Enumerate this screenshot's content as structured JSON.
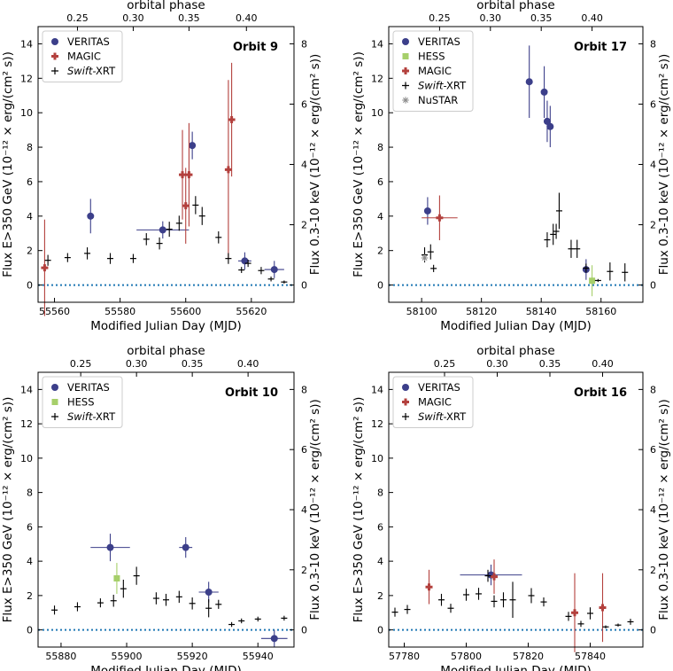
{
  "figure": {
    "x_label": "Modified Julian Day (MJD)",
    "top_label": "orbital phase",
    "y_label_left": "Flux E>350 GeV (10⁻¹² × erg/(cm² s))",
    "y_label_right": "Flux 0.3-10 keV (10⁻¹² × erg/(cm² s))",
    "series_colors": {
      "VERITAS": "#3c3f8a",
      "MAGIC": "#b3403d",
      "HESS": "#a6cf6a",
      "Swift-XRT": "#000000",
      "NuSTAR": "#8c8c8c"
    }
  },
  "chart_data": [
    {
      "type": "scatter",
      "title": "Orbit 9",
      "legend": [
        "VERITAS",
        "MAGIC",
        "Swift-XRT"
      ],
      "xlim": [
        55555,
        55633
      ],
      "ylim": [
        -1,
        15
      ],
      "y2lim": [
        -0.5714,
        8.5714
      ],
      "x_ticks": [
        55560,
        55580,
        55600,
        55620
      ],
      "y_ticks": [
        0,
        2,
        4,
        6,
        8,
        10,
        12,
        14
      ],
      "y2_ticks": [
        0,
        2,
        4,
        6,
        8
      ],
      "phase_ticks": [
        {
          "label": "0.25",
          "mjd": 55567
        },
        {
          "label": "0.30",
          "mjd": 55584
        },
        {
          "label": "0.35",
          "mjd": 55601
        },
        {
          "label": "0.40",
          "mjd": 55618.5
        }
      ],
      "series": [
        {
          "name": "VERITAS",
          "points": [
            {
              "x": 55571,
              "y": 4.0,
              "xerr": 1,
              "yerr": 1.0
            },
            {
              "x": 55593,
              "y": 3.2,
              "xerr": 8,
              "yerr": 0.5
            },
            {
              "x": 55602,
              "y": 8.1,
              "xerr": 1,
              "yerr": 0.8
            },
            {
              "x": 55618,
              "y": 1.4,
              "xerr": 2,
              "yerr": 0.5
            },
            {
              "x": 55627,
              "y": 0.9,
              "xerr": 3,
              "yerr": 0.5
            }
          ]
        },
        {
          "name": "MAGIC",
          "points": [
            {
              "x": 55557,
              "y": 1.0,
              "xerr": 0.5,
              "yerr": 2.8
            },
            {
              "x": 55599,
              "y": 6.4,
              "xerr": 1,
              "yerr": 2.6
            },
            {
              "x": 55600,
              "y": 4.6,
              "xerr": 1,
              "yerr": 2.2
            },
            {
              "x": 55601,
              "y": 6.4,
              "xerr": 1,
              "yerr": 3.0
            },
            {
              "x": 55613,
              "y": 6.7,
              "xerr": 0.5,
              "yerr": 5.2
            },
            {
              "x": 55614,
              "y": 9.6,
              "xerr": 0.5,
              "yerr": 3.3
            }
          ]
        },
        {
          "name": "Swift-XRT",
          "points": [
            {
              "x": 55558,
              "y": 0.82,
              "yerr": 0.18
            },
            {
              "x": 55564,
              "y": 0.91,
              "yerr": 0.15
            },
            {
              "x": 55570,
              "y": 1.05,
              "yerr": 0.2
            },
            {
              "x": 55577,
              "y": 0.88,
              "yerr": 0.18
            },
            {
              "x": 55584,
              "y": 0.88,
              "yerr": 0.15
            },
            {
              "x": 55588,
              "y": 1.52,
              "yerr": 0.2
            },
            {
              "x": 55592,
              "y": 1.38,
              "yerr": 0.2
            },
            {
              "x": 55595,
              "y": 1.85,
              "yerr": 0.25
            },
            {
              "x": 55598,
              "y": 2.05,
              "yerr": 0.25
            },
            {
              "x": 55603,
              "y": 2.65,
              "yerr": 0.3
            },
            {
              "x": 55605,
              "y": 2.29,
              "yerr": 0.3
            },
            {
              "x": 55610,
              "y": 1.58,
              "yerr": 0.2
            },
            {
              "x": 55613,
              "y": 0.88,
              "yerr": 0.18
            },
            {
              "x": 55617,
              "y": 0.5,
              "yerr": 0.1
            },
            {
              "x": 55619,
              "y": 0.72,
              "yerr": 0.12
            },
            {
              "x": 55623,
              "y": 0.48,
              "yerr": 0.12
            },
            {
              "x": 55626,
              "y": 0.2,
              "yerr": 0.08
            },
            {
              "x": 55630,
              "y": 0.1,
              "yerr": 0.05
            }
          ]
        }
      ]
    },
    {
      "type": "scatter",
      "title": "Orbit 17",
      "legend": [
        "VERITAS",
        "HESS",
        "MAGIC",
        "Swift-XRT",
        "NuSTAR"
      ],
      "xlim": [
        58089,
        58174
      ],
      "ylim": [
        -1,
        15
      ],
      "y2lim": [
        -0.5714,
        8.5714
      ],
      "x_ticks": [
        58100,
        58120,
        58140,
        58160
      ],
      "y_ticks": [
        0,
        2,
        4,
        6,
        8,
        10,
        12,
        14
      ],
      "y2_ticks": [
        0,
        2,
        4,
        6,
        8
      ],
      "phase_ticks": [
        {
          "label": "0.25",
          "mjd": 58106
        },
        {
          "label": "0.30",
          "mjd": 58123
        },
        {
          "label": "0.35",
          "mjd": 58140
        },
        {
          "label": "0.40",
          "mjd": 58157
        }
      ],
      "series": [
        {
          "name": "VERITAS",
          "points": [
            {
              "x": 58102,
              "y": 4.3,
              "xerr": 1,
              "yerr": 0.8
            },
            {
              "x": 58136,
              "y": 11.8,
              "xerr": 1,
              "yerr": 2.1
            },
            {
              "x": 58141,
              "y": 11.2,
              "xerr": 1,
              "yerr": 1.5
            },
            {
              "x": 58142,
              "y": 9.5,
              "xerr": 1,
              "yerr": 1.2
            },
            {
              "x": 58143,
              "y": 9.2,
              "xerr": 1,
              "yerr": 1.2
            },
            {
              "x": 58155,
              "y": 0.9,
              "xerr": 1,
              "yerr": 0.6
            }
          ]
        },
        {
          "name": "HESS",
          "points": [
            {
              "x": 58157,
              "y": 0.25,
              "xerr": 0.5,
              "yerr": 0.9
            }
          ]
        },
        {
          "name": "MAGIC",
          "points": [
            {
              "x": 58106,
              "y": 3.9,
              "xerr": 6,
              "yerr": 1.3
            }
          ]
        },
        {
          "name": "Swift-XRT",
          "points": [
            {
              "x": 58101,
              "y": 1.0,
              "yerr": 0.25
            },
            {
              "x": 58103,
              "y": 1.1,
              "yerr": 0.25
            },
            {
              "x": 58104,
              "y": 0.55,
              "yerr": 0.12
            },
            {
              "x": 58142,
              "y": 1.5,
              "yerr": 0.25
            },
            {
              "x": 58144,
              "y": 1.68,
              "yerr": 0.35
            },
            {
              "x": 58145,
              "y": 1.78,
              "yerr": 0.25
            },
            {
              "x": 58146,
              "y": 2.46,
              "yerr": 0.6
            },
            {
              "x": 58150,
              "y": 1.2,
              "yerr": 0.3
            },
            {
              "x": 58152,
              "y": 1.2,
              "yerr": 0.3
            },
            {
              "x": 58155,
              "y": 0.56,
              "yerr": 0.15
            },
            {
              "x": 58159,
              "y": 0.15,
              "yerr": 0.05
            },
            {
              "x": 58163,
              "y": 0.45,
              "yerr": 0.3
            },
            {
              "x": 58168,
              "y": 0.42,
              "yerr": 0.3
            }
          ]
        },
        {
          "name": "NuSTAR",
          "points": [
            {
              "x": 58101,
              "y": 0.9,
              "yerr": 0.1
            }
          ]
        }
      ]
    },
    {
      "type": "scatter",
      "title": "Orbit 10",
      "legend": [
        "VERITAS",
        "HESS",
        "Swift-XRT"
      ],
      "xlim": [
        55873,
        55951
      ],
      "ylim": [
        -1,
        15
      ],
      "y2lim": [
        -0.5714,
        8.5714
      ],
      "x_ticks": [
        55880,
        55900,
        55920,
        55940
      ],
      "y_ticks": [
        0,
        2,
        4,
        6,
        8,
        10,
        12,
        14
      ],
      "y2_ticks": [
        0,
        2,
        4,
        6,
        8
      ],
      "phase_ticks": [
        {
          "label": "0.25",
          "mjd": 55886
        },
        {
          "label": "0.30",
          "mjd": 55903
        },
        {
          "label": "0.35",
          "mjd": 55920
        },
        {
          "label": "0.40",
          "mjd": 55937
        }
      ],
      "series": [
        {
          "name": "VERITAS",
          "points": [
            {
              "x": 55895,
              "y": 4.8,
              "xerr": 6,
              "yerr": 0.8
            },
            {
              "x": 55918,
              "y": 4.8,
              "xerr": 2,
              "yerr": 0.6
            },
            {
              "x": 55925,
              "y": 2.2,
              "xerr": 3,
              "yerr": 0.6
            },
            {
              "x": 55945,
              "y": -0.5,
              "xerr": 4,
              "yerr": 0.5
            }
          ]
        },
        {
          "name": "HESS",
          "points": [
            {
              "x": 55897,
              "y": 3.0,
              "xerr": 0.5,
              "yerr": 0.9
            }
          ]
        },
        {
          "name": "Swift-XRT",
          "points": [
            {
              "x": 55878,
              "y": 0.66,
              "yerr": 0.15
            },
            {
              "x": 55885,
              "y": 0.77,
              "yerr": 0.15
            },
            {
              "x": 55892,
              "y": 0.9,
              "yerr": 0.15
            },
            {
              "x": 55896,
              "y": 0.97,
              "yerr": 0.2
            },
            {
              "x": 55899,
              "y": 1.37,
              "yerr": 0.3
            },
            {
              "x": 55903,
              "y": 1.8,
              "yerr": 0.3
            },
            {
              "x": 55909,
              "y": 1.05,
              "yerr": 0.2
            },
            {
              "x": 55912,
              "y": 1.0,
              "yerr": 0.2
            },
            {
              "x": 55916,
              "y": 1.1,
              "yerr": 0.2
            },
            {
              "x": 55920,
              "y": 0.88,
              "yerr": 0.2
            },
            {
              "x": 55925,
              "y": 0.72,
              "yerr": 0.3
            },
            {
              "x": 55928,
              "y": 0.85,
              "yerr": 0.15
            },
            {
              "x": 55932,
              "y": 0.18,
              "yerr": 0.08
            },
            {
              "x": 55935,
              "y": 0.3,
              "yerr": 0.08
            },
            {
              "x": 55940,
              "y": 0.36,
              "yerr": 0.08
            },
            {
              "x": 55948,
              "y": 0.39,
              "yerr": 0.08
            }
          ]
        }
      ]
    },
    {
      "type": "scatter",
      "title": "Orbit 16",
      "legend": [
        "VERITAS",
        "MAGIC",
        "Swift-XRT"
      ],
      "xlim": [
        57775,
        57857
      ],
      "ylim": [
        -1,
        15
      ],
      "y2lim": [
        -0.5714,
        8.5714
      ],
      "x_ticks": [
        57780,
        57800,
        57820,
        57840
      ],
      "y_ticks": [
        0,
        2,
        4,
        6,
        8,
        10,
        12,
        14
      ],
      "y2_ticks": [
        0,
        2,
        4,
        6,
        8
      ],
      "phase_ticks": [
        {
          "label": "0.25",
          "mjd": 57793
        },
        {
          "label": "0.30",
          "mjd": 57810
        },
        {
          "label": "0.35",
          "mjd": 57827
        },
        {
          "label": "0.40",
          "mjd": 57844
        }
      ],
      "series": [
        {
          "name": "VERITAS",
          "points": [
            {
              "x": 57808,
              "y": 3.2,
              "xerr": 10,
              "yerr": 0.6
            }
          ]
        },
        {
          "name": "MAGIC",
          "points": [
            {
              "x": 57788,
              "y": 2.5,
              "xerr": 1,
              "yerr": 1.0
            },
            {
              "x": 57809,
              "y": 3.1,
              "xerr": 1,
              "yerr": 1.0
            },
            {
              "x": 57835,
              "y": 1.0,
              "xerr": 1,
              "yerr": 2.3
            },
            {
              "x": 57844,
              "y": 1.3,
              "xerr": 1,
              "yerr": 2.0
            }
          ]
        },
        {
          "name": "Swift-XRT",
          "points": [
            {
              "x": 57777,
              "y": 0.59,
              "yerr": 0.15
            },
            {
              "x": 57781,
              "y": 0.68,
              "yerr": 0.15
            },
            {
              "x": 57792,
              "y": 1.0,
              "yerr": 0.2
            },
            {
              "x": 57795,
              "y": 0.72,
              "yerr": 0.15
            },
            {
              "x": 57800,
              "y": 1.17,
              "yerr": 0.2
            },
            {
              "x": 57804,
              "y": 1.2,
              "yerr": 0.2
            },
            {
              "x": 57807,
              "y": 1.8,
              "yerr": 0.2
            },
            {
              "x": 57809,
              "y": 0.95,
              "yerr": 0.2
            },
            {
              "x": 57812,
              "y": 1.0,
              "yerr": 0.25
            },
            {
              "x": 57815,
              "y": 1.0,
              "yerr": 0.6
            },
            {
              "x": 57821,
              "y": 1.14,
              "yerr": 0.25
            },
            {
              "x": 57825,
              "y": 0.93,
              "yerr": 0.15
            },
            {
              "x": 57833,
              "y": 0.45,
              "yerr": 0.15
            },
            {
              "x": 57837,
              "y": 0.2,
              "yerr": 0.1
            },
            {
              "x": 57840,
              "y": 0.55,
              "yerr": 0.2
            },
            {
              "x": 57845,
              "y": 0.1,
              "yerr": 0.05
            },
            {
              "x": 57849,
              "y": 0.16,
              "yerr": 0.05
            },
            {
              "x": 57853,
              "y": 0.27,
              "yerr": 0.1
            }
          ]
        }
      ]
    }
  ]
}
